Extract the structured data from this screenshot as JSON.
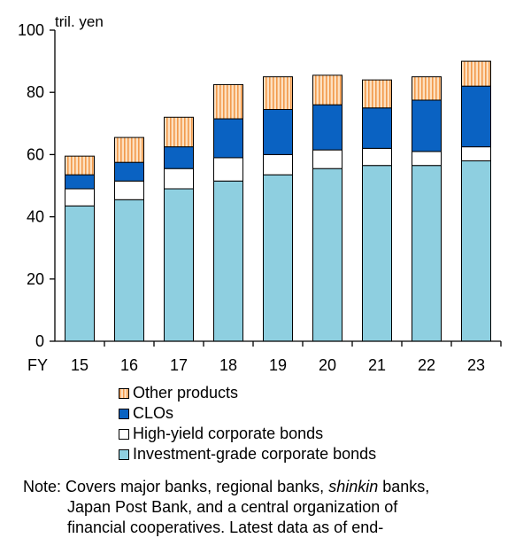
{
  "chart_data": {
    "type": "bar",
    "stacked": true,
    "unit_label": "tril. yen",
    "x_prefix": "FY",
    "categories": [
      "15",
      "16",
      "17",
      "18",
      "19",
      "20",
      "21",
      "22",
      "23"
    ],
    "ylim": [
      0,
      100
    ],
    "yticks": [
      0,
      20,
      40,
      60,
      80,
      100
    ],
    "series": [
      {
        "name": "Investment-grade corporate bonds",
        "color": "#8ecfe0",
        "values": [
          43.5,
          45.5,
          49,
          51.5,
          53.5,
          55.5,
          56.5,
          56.5,
          58
        ]
      },
      {
        "name": "High-yield corporate bonds",
        "color": "#ffffff",
        "values": [
          5.5,
          6,
          6.5,
          7.5,
          6.5,
          6,
          5.5,
          4.5,
          4.5
        ]
      },
      {
        "name": "CLOs",
        "color": "#0a62c2",
        "values": [
          4.5,
          6,
          7,
          12.5,
          14.5,
          14.5,
          13,
          16.5,
          19.5
        ]
      },
      {
        "name": "Other products",
        "color": "#f7c08a",
        "values": [
          6,
          8,
          9.5,
          11,
          10.5,
          9.5,
          9,
          7.5,
          8
        ]
      }
    ],
    "legend_order": [
      "Other products",
      "CLOs",
      "High-yield corporate bonds",
      "Investment-grade corporate bonds"
    ]
  },
  "note": {
    "label": "Note:",
    "line1": "Covers major banks, regional banks,",
    "line1_italic": "shinkin",
    "line1_end": "banks,",
    "line2": "Japan Post Bank, and a central organization of",
    "line3": "financial cooperatives. Latest data as of end-"
  }
}
